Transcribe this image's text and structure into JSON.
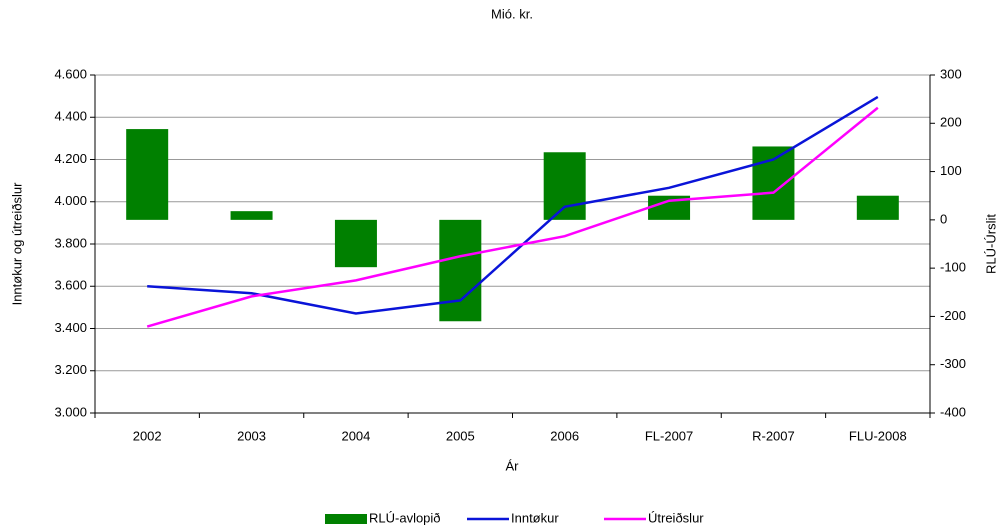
{
  "chart_data": {
    "type": "bar-line",
    "title": "Mió. kr.",
    "x_label": "Ár",
    "y_label": "Inntøkur og útreiðslur",
    "y2_label": "RLÚ-Úrslit",
    "categories": [
      "2002",
      "2003",
      "2004",
      "2005",
      "2006",
      "FL-2007",
      "R-2007",
      "FLU-2008"
    ],
    "series": [
      {
        "name": "RLÚ-avlopið",
        "type": "bar",
        "axis": "y2",
        "color": "#008000",
        "values": [
          188,
          18,
          -98,
          -210,
          140,
          50,
          152,
          50
        ]
      },
      {
        "name": "Inntøkur",
        "type": "line",
        "color": "#0a14d8",
        "values": [
          3600,
          3567,
          3471,
          3533,
          3976,
          4066,
          4200,
          4496
        ]
      },
      {
        "name": "Útreiðslur",
        "type": "line",
        "color": "#ff00ff",
        "values": [
          3409,
          3552,
          3628,
          3742,
          3837,
          4005,
          4043,
          4445
        ]
      }
    ],
    "ylim": [
      3000,
      4600
    ],
    "yticks": [
      {
        "value": 3000,
        "label": "3.000"
      },
      {
        "value": 3200,
        "label": "3.200"
      },
      {
        "value": 3400,
        "label": "3.400"
      },
      {
        "value": 3600,
        "label": "3.600"
      },
      {
        "value": 3800,
        "label": "3.800"
      },
      {
        "value": 4000,
        "label": "4.000"
      },
      {
        "value": 4200,
        "label": "4.200"
      },
      {
        "value": 4400,
        "label": "4.400"
      },
      {
        "value": 4600,
        "label": "4.600"
      }
    ],
    "y2lim": [
      -400,
      300
    ],
    "y2ticks": [
      -400,
      -300,
      -200,
      -100,
      0,
      100,
      200,
      300
    ],
    "grid": true,
    "legend": "bottom"
  }
}
